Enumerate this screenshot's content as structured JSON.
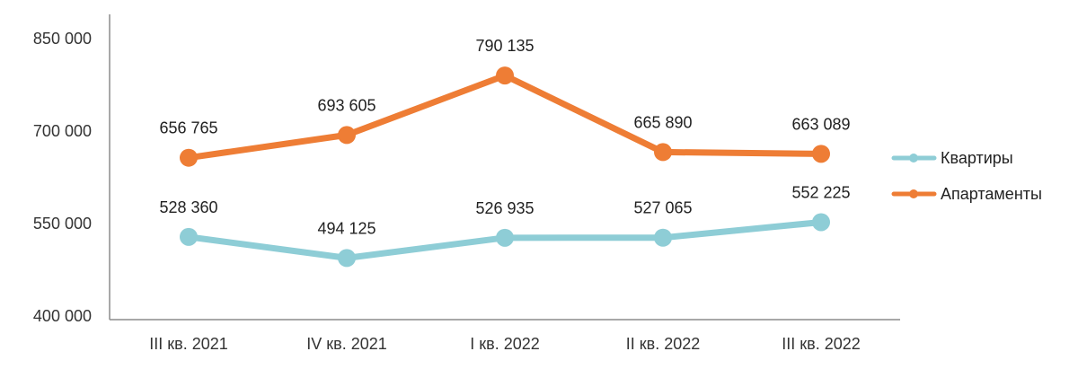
{
  "chart_data": {
    "type": "line",
    "categories": [
      "III кв. 2021",
      "IV кв. 2021",
      "I кв. 2022",
      "II кв. 2022",
      "III кв. 2022"
    ],
    "ylim": [
      400000,
      850000
    ],
    "yticks": [
      400000,
      550000,
      700000,
      850000
    ],
    "ytick_labels": [
      "400 000",
      "550 000",
      "700 000",
      "850 000"
    ],
    "grid": false,
    "legend_position": "right",
    "series": [
      {
        "name": "Квартиры",
        "color": "#8ecdd6",
        "values": [
          528360,
          494125,
          526935,
          527065,
          552225
        ],
        "labels": [
          "528 360",
          "494 125",
          "526 935",
          "527 065",
          "552 225"
        ]
      },
      {
        "name": "Апартаменты",
        "color": "#ee7d35",
        "values": [
          656765,
          693605,
          790135,
          665890,
          663089
        ],
        "labels": [
          "656 765",
          "693 605",
          "790 135",
          "665 890",
          "663 089"
        ]
      }
    ]
  }
}
